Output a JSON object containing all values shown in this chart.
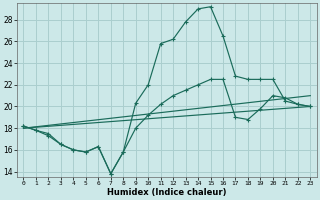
{
  "xlabel": "Humidex (Indice chaleur)",
  "xlim": [
    -0.5,
    23.5
  ],
  "ylim": [
    13.5,
    29.5
  ],
  "yticks": [
    14,
    16,
    18,
    20,
    22,
    24,
    26,
    28
  ],
  "xticks": [
    0,
    1,
    2,
    3,
    4,
    5,
    6,
    7,
    8,
    9,
    10,
    11,
    12,
    13,
    14,
    15,
    16,
    17,
    18,
    19,
    20,
    21,
    22,
    23
  ],
  "bg_color": "#cce8e8",
  "line_color": "#1a6b5a",
  "grid_color": "#aacece",
  "line1_x": [
    0,
    1,
    2,
    3,
    4,
    5,
    6,
    7,
    8,
    9,
    10,
    11,
    12,
    13,
    14,
    15,
    16,
    17,
    18,
    19,
    20,
    21,
    22,
    23
  ],
  "line1_y": [
    18.2,
    17.8,
    17.5,
    16.5,
    16.0,
    15.8,
    16.3,
    13.8,
    15.8,
    20.3,
    22.0,
    25.8,
    26.2,
    27.8,
    29.0,
    29.2,
    26.5,
    22.8,
    22.5,
    22.5,
    22.5,
    20.5,
    20.2,
    20.0
  ],
  "line2_x": [
    0,
    1,
    2,
    3,
    4,
    5,
    6,
    7,
    8,
    9,
    10,
    11,
    12,
    13,
    14,
    15,
    16,
    17,
    18,
    19,
    20,
    21,
    22,
    23
  ],
  "line2_y": [
    18.2,
    17.8,
    17.3,
    16.5,
    16.0,
    15.8,
    16.3,
    13.8,
    15.8,
    18.0,
    19.2,
    20.2,
    21.0,
    21.5,
    22.0,
    22.5,
    22.5,
    19.0,
    18.8,
    19.8,
    21.0,
    20.8,
    20.2,
    20.0
  ],
  "line3_x": [
    0,
    23
  ],
  "line3_y": [
    18.0,
    21.0
  ],
  "line4_x": [
    0,
    23
  ],
  "line4_y": [
    18.0,
    20.0
  ]
}
